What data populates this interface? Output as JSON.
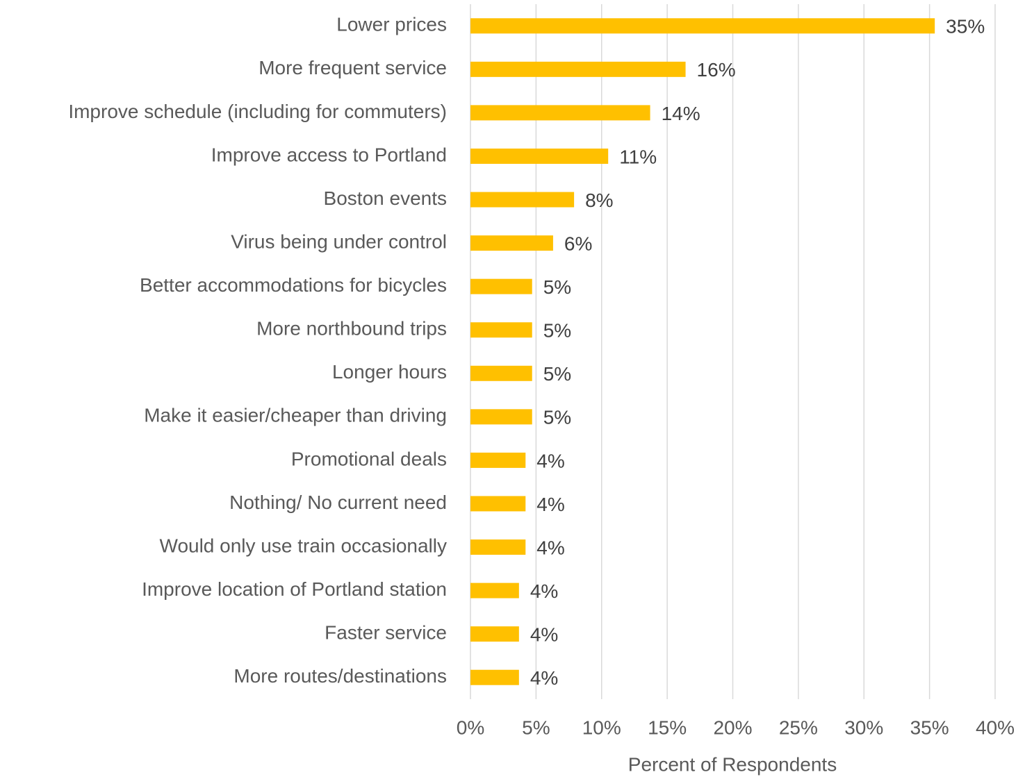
{
  "chart_data": {
    "type": "hbar",
    "categories": [
      "Lower prices",
      "More frequent service",
      "Improve schedule (including for commuters)",
      "Improve access to Portland",
      "Boston events",
      "Virus being under control",
      "Better accommodations for bicycles",
      "More northbound trips",
      "Longer hours",
      "Make it easier/cheaper than driving",
      "Promotional deals",
      "Nothing/ No current need",
      "Would only use train occasionally",
      "Improve location of Portland station",
      "Faster service",
      "More routes/destinations"
    ],
    "values": [
      35.4,
      16.4,
      13.7,
      10.5,
      7.9,
      6.3,
      4.7,
      4.7,
      4.7,
      4.7,
      4.2,
      4.2,
      4.2,
      3.7,
      3.7,
      3.7
    ],
    "value_labels": [
      "35%",
      "16%",
      "14%",
      "11%",
      "8%",
      "6%",
      "5%",
      "5%",
      "5%",
      "5%",
      "4%",
      "4%",
      "4%",
      "4%",
      "4%",
      "4%"
    ],
    "color": "#ffc000",
    "xlim": [
      0,
      40
    ],
    "xticks": [
      {
        "value": 0,
        "label": "0%"
      },
      {
        "value": 5,
        "label": "5%"
      },
      {
        "value": 10,
        "label": "10%"
      },
      {
        "value": 15,
        "label": "15%"
      },
      {
        "value": 20,
        "label": "20%"
      },
      {
        "value": 25,
        "label": "25%"
      },
      {
        "value": 30,
        "label": "30%"
      },
      {
        "value": 35,
        "label": "35%"
      },
      {
        "value": 40,
        "label": "40%"
      }
    ],
    "x_label": "Percent of Respondents",
    "grid": true
  }
}
